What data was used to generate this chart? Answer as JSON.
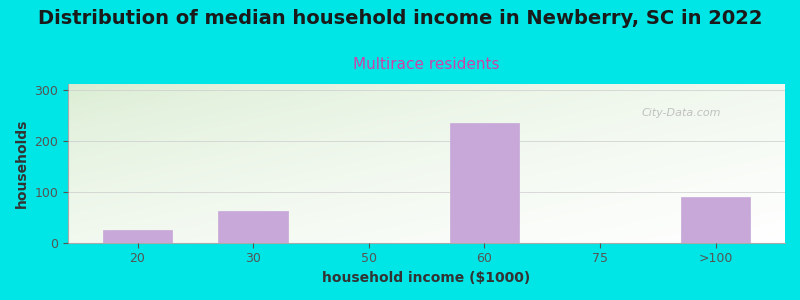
{
  "title": "Distribution of median household income in Newberry, SC in 2022",
  "subtitle": "Multirace residents",
  "xlabel": "household income ($1000)",
  "ylabel": "households",
  "categories": [
    "20",
    "30",
    "50",
    "60",
    "75",
    ">100"
  ],
  "values": [
    25,
    62,
    0,
    235,
    0,
    90
  ],
  "bar_color": "#c8a8d8",
  "bar_edge_color": "#c8a8d8",
  "background_color": "#00e5e5",
  "plot_bg_color_topleft": [
    0.847,
    0.925,
    0.816
  ],
  "plot_bg_color_white": [
    1.0,
    1.0,
    1.0
  ],
  "ylim": [
    0,
    310
  ],
  "yticks": [
    0,
    100,
    200,
    300
  ],
  "title_fontsize": 14,
  "subtitle_fontsize": 11,
  "label_fontsize": 10,
  "tick_fontsize": 9,
  "watermark": "City-Data.com"
}
